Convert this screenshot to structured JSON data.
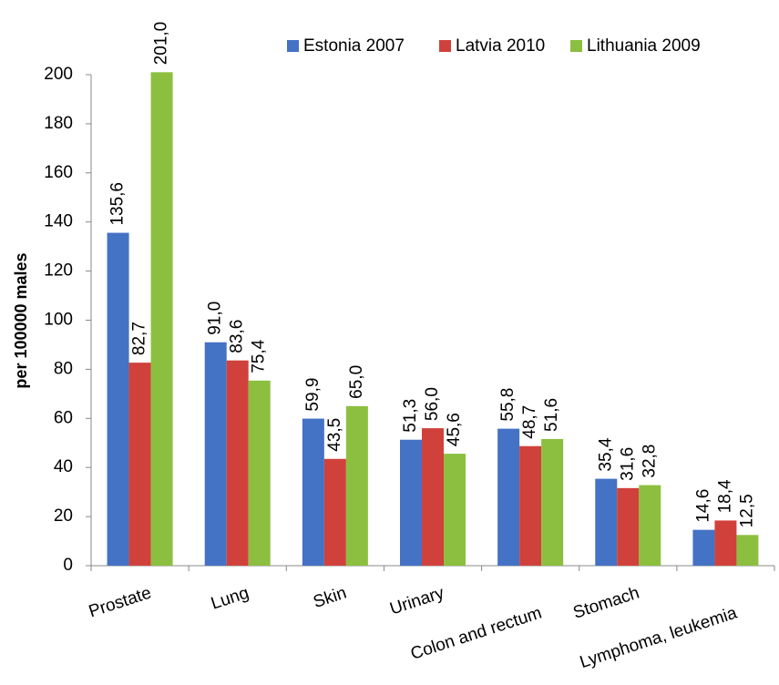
{
  "chart_data": {
    "type": "bar",
    "y_label": "per 100000 males",
    "categories": [
      "Prostate",
      "Lung",
      "Skin",
      "Urinary",
      "Colon and rectum",
      "Stomach",
      "Lymphoma, leukemia"
    ],
    "series": [
      {
        "name": "Estonia 2007",
        "color": "#4472c4",
        "values": [
          135.6,
          91.0,
          59.9,
          51.3,
          55.8,
          35.4,
          14.6
        ],
        "value_labels": [
          "135,6",
          "91,0",
          "59,9",
          "51,3",
          "55,8",
          "35,4",
          "14,6"
        ]
      },
      {
        "name": "Latvia 2010",
        "color": "#d0413c",
        "values": [
          82.7,
          83.6,
          43.5,
          56.0,
          48.7,
          31.6,
          18.4
        ],
        "value_labels": [
          "82,7",
          "83,6",
          "43,5",
          "56,0",
          "48,7",
          "31,6",
          "18,4"
        ]
      },
      {
        "name": "Lithuania 2009",
        "color": "#8cbf3f",
        "values": [
          201.0,
          75.4,
          65.0,
          45.6,
          51.6,
          32.8,
          12.5
        ],
        "value_labels": [
          "201,0",
          "75,4",
          "65,0",
          "45,6",
          "51,6",
          "32,8",
          "12,5"
        ]
      }
    ],
    "ylim": [
      0,
      200
    ],
    "yticks": [
      0,
      20,
      40,
      60,
      80,
      100,
      120,
      140,
      160,
      180,
      200
    ],
    "grid": false,
    "legend": "top-right"
  }
}
